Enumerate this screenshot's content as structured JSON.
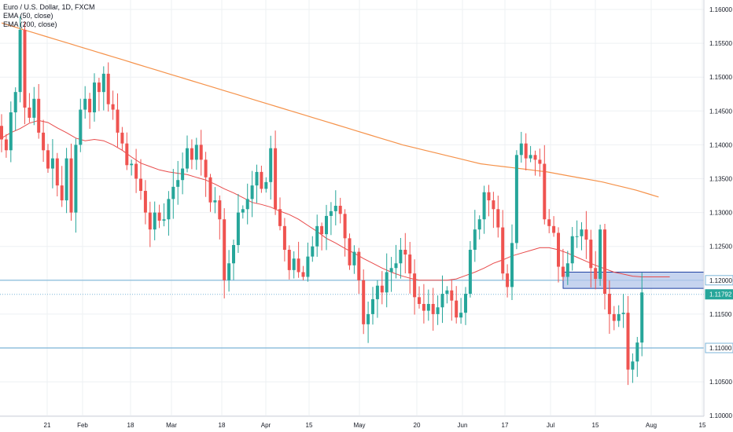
{
  "header": {
    "symbol_title": "Euro / U.S. Dollar, 1D, FXCM",
    "indicator_1": "EMA (50, close)",
    "indicator_2": "EMA (200, close)"
  },
  "chart_data": {
    "type": "candlestick",
    "instrument": "Euro / U.S. Dollar",
    "interval": "1D",
    "source": "FXCM",
    "x_ticks": [
      "21",
      "Feb",
      "18",
      "Mar",
      "18",
      "Apr",
      "15",
      "May",
      "20",
      "Jun",
      "17",
      "Jul",
      "15",
      "Aug",
      "15"
    ],
    "y_ticks": [
      "1.16000",
      "1.15500",
      "1.15000",
      "1.14500",
      "1.14000",
      "1.13500",
      "1.13000",
      "1.12500",
      "1.12000",
      "1.11500",
      "1.11000",
      "1.10500",
      "1.10000"
    ],
    "ylim": [
      1.1,
      1.16
    ],
    "closes": [
      1.1408,
      1.1392,
      1.1448,
      1.1478,
      1.157,
      1.1455,
      1.144,
      1.1468,
      1.1418,
      1.1392,
      1.1365,
      1.138,
      1.134,
      1.1318,
      1.138,
      1.13,
      1.14,
      1.1452,
      1.1468,
      1.1448,
      1.1492,
      1.1478,
      1.1505,
      1.146,
      1.1452,
      1.1418,
      1.1402,
      1.137,
      1.1372,
      1.135,
      1.1332,
      1.13,
      1.1275,
      1.13,
      1.1288,
      1.129,
      1.132,
      1.1338,
      1.1348,
      1.1365,
      1.1395,
      1.1378,
      1.14,
      1.1378,
      1.1352,
      1.1315,
      1.1318,
      1.129,
      1.12,
      1.1225,
      1.1252,
      1.13,
      1.1305,
      1.132,
      1.134,
      1.136,
      1.1335,
      1.1345,
      1.1395,
      1.1305,
      1.128,
      1.1245,
      1.1215,
      1.1232,
      1.1212,
      1.1205,
      1.1235,
      1.125,
      1.128,
      1.1268,
      1.1295,
      1.1302,
      1.131,
      1.1298,
      1.1262,
      1.1222,
      1.1242,
      1.12,
      1.1135,
      1.115,
      1.1172,
      1.1192,
      1.1182,
      1.1212,
      1.1218,
      1.1225,
      1.1245,
      1.1238,
      1.121,
      1.1175,
      1.1165,
      1.1155,
      1.1165,
      1.115,
      1.116,
      1.118,
      1.1185,
      1.117,
      1.1145,
      1.1152,
      1.118,
      1.1245,
      1.1275,
      1.129,
      1.133,
      1.1318,
      1.1305,
      1.1278,
      1.121,
      1.119,
      1.1255,
      1.1385,
      1.1402,
      1.138,
      1.1385,
      1.1378,
      1.1372,
      1.129,
      1.128,
      1.127,
      1.122,
      1.1205,
      1.1225,
      1.1265,
      1.1265,
      1.1275,
      1.126,
      1.1218,
      1.1202,
      1.1275,
      1.118,
      1.115,
      1.114,
      1.115,
      1.1152,
      1.1068,
      1.108,
      1.1108,
      1.1182
    ],
    "ema_50": [
      1.141,
      1.1418,
      1.1424,
      1.1432,
      1.1436,
      1.1433,
      1.1425,
      1.1418,
      1.141,
      1.1406,
      1.1408,
      1.1406,
      1.14,
      1.1392,
      1.1382,
      1.1373,
      1.1368,
      1.1363,
      1.136,
      1.1358,
      1.1356,
      1.1352,
      1.1348,
      1.1342,
      1.1335,
      1.1329,
      1.1322,
      1.1315,
      1.1312,
      1.1308,
      1.1302,
      1.1297,
      1.129,
      1.1281,
      1.1272,
      1.1262,
      1.1255,
      1.1247,
      1.124,
      1.1232,
      1.1225,
      1.1218,
      1.1212,
      1.1207,
      1.1203,
      1.12,
      1.12,
      1.12,
      1.12,
      1.1202,
      1.1207,
      1.1212,
      1.1218,
      1.1225,
      1.123,
      1.1236,
      1.124,
      1.1244,
      1.1248,
      1.1248,
      1.1245,
      1.124,
      1.1234,
      1.1228,
      1.1222,
      1.1217,
      1.1212,
      1.1209,
      1.1206,
      1.1205,
      1.1205,
      1.1205,
      1.1205
    ],
    "ema_200": [
      1.158,
      1.1575,
      1.157,
      1.1565,
      1.156,
      1.1555,
      1.155,
      1.1545,
      1.154,
      1.1535,
      1.153,
      1.1525,
      1.152,
      1.1515,
      1.151,
      1.1505,
      1.15,
      1.1495,
      1.149,
      1.1485,
      1.148,
      1.1475,
      1.147,
      1.1465,
      1.146,
      1.1455,
      1.145,
      1.1445,
      1.144,
      1.1435,
      1.143,
      1.1425,
      1.142,
      1.1415,
      1.141,
      1.1405,
      1.14,
      1.1396,
      1.1392,
      1.1388,
      1.1384,
      1.138,
      1.1376,
      1.1372,
      1.137,
      1.1368,
      1.1366,
      1.1364,
      1.1362,
      1.136,
      1.1357,
      1.1354,
      1.1351,
      1.1348,
      1.1345,
      1.1341,
      1.1337,
      1.1333,
      1.1328,
      1.1323
    ],
    "horizontal_lines": [
      {
        "price": 1.12,
        "label": "1.12000"
      },
      {
        "price": 1.11792,
        "label": "1.11792"
      },
      {
        "price": 1.11,
        "label": "1.11000"
      }
    ],
    "zone": {
      "from": 1.1188,
      "to": 1.1212
    },
    "colors": {
      "up": "#26a69a",
      "down": "#ef5350",
      "ema_50": "#e84a4a",
      "ema_200": "#f5924a",
      "level": "#7cb5d8",
      "zone_fill": "#b3c6ea",
      "zone_border": "#1f3fa0",
      "grid": "#eef0f3",
      "axis_text": "#131722"
    }
  }
}
